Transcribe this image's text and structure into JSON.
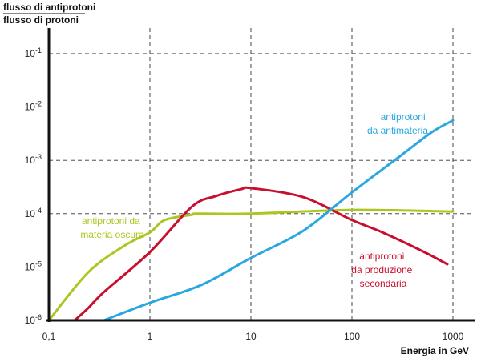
{
  "chart_data": {
    "type": "line",
    "title": "",
    "ylabel_numerator": "flusso di antiprotoni",
    "ylabel_denominator": "flusso di protoni",
    "xlabel": "Energia in GeV",
    "xscale": "log",
    "yscale": "log",
    "xlim": [
      0.1,
      1000
    ],
    "ylim": [
      1e-06,
      0.1
    ],
    "grid": true,
    "x_ticks": [
      {
        "value": 0.1,
        "label": "0,1"
      },
      {
        "value": 1,
        "label": "1"
      },
      {
        "value": 10,
        "label": "10"
      },
      {
        "value": 100,
        "label": "100"
      },
      {
        "value": 1000,
        "label": "1000"
      }
    ],
    "y_ticks": [
      {
        "exp": -6,
        "base": "10",
        "sup": "-6"
      },
      {
        "exp": -5,
        "base": "10",
        "sup": "-5"
      },
      {
        "exp": -4,
        "base": "10",
        "sup": "-4"
      },
      {
        "exp": -3,
        "base": "10",
        "sup": "-3"
      },
      {
        "exp": -2,
        "base": "10",
        "sup": "-2"
      },
      {
        "exp": -1,
        "base": "10",
        "sup": "-1"
      }
    ],
    "series": [
      {
        "name": "dark-matter",
        "label_lines": [
          "antiprotoni da",
          "materia oscura"
        ],
        "color": "#a9c81e",
        "x": [
          0.1,
          0.245,
          0.56,
          1.0,
          1.4,
          2.6,
          3,
          10,
          100,
          1000
        ],
        "log10_y": [
          -6,
          -5.1,
          -4.6,
          -4.35,
          -4.12,
          -4.02,
          -4.0,
          -4.0,
          -3.93,
          -3.96
        ]
      },
      {
        "name": "secondary-production",
        "label_lines": [
          "antiprotoni",
          "da produzione",
          "secondaria"
        ],
        "color": "#c8102e",
        "x": [
          0.18,
          0.245,
          0.35,
          1,
          2.6,
          4.5,
          8,
          10,
          33,
          100,
          200,
          520,
          880
        ],
        "log10_y": [
          -6,
          -5.77,
          -5.47,
          -4.72,
          -3.87,
          -3.67,
          -3.54,
          -3.52,
          -3.69,
          -4.12,
          -4.35,
          -4.72,
          -4.95
        ]
      },
      {
        "name": "antimatter",
        "label_lines": [
          "antiprotoni",
          "da antimateria"
        ],
        "color": "#29a8e0",
        "x": [
          0.35,
          1,
          3.2,
          10,
          33,
          100,
          300,
          620,
          1000
        ],
        "log10_y": [
          -6,
          -5.67,
          -5.34,
          -4.83,
          -4.32,
          -3.6,
          -2.92,
          -2.47,
          -2.25
        ]
      }
    ]
  }
}
